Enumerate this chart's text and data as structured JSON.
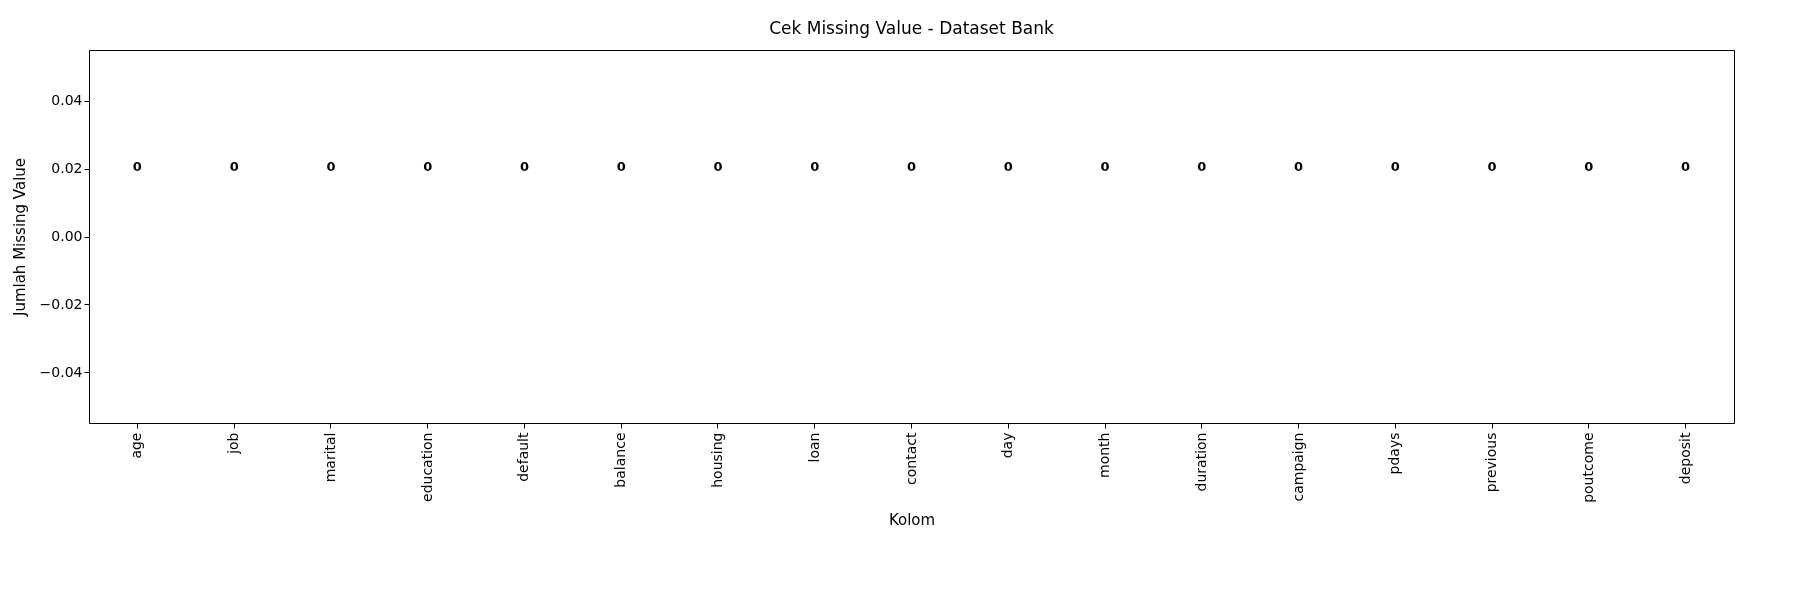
{
  "chart_data": {
    "type": "bar",
    "title": "Cek Missing Value - Dataset Bank",
    "xlabel": "Kolom",
    "ylabel": "Jumlah Missing Value",
    "categories": [
      "age",
      "job",
      "marital",
      "education",
      "default",
      "balance",
      "housing",
      "loan",
      "contact",
      "day",
      "month",
      "duration",
      "campaign",
      "pdays",
      "previous",
      "poutcome",
      "deposit"
    ],
    "values": [
      0,
      0,
      0,
      0,
      0,
      0,
      0,
      0,
      0,
      0,
      0,
      0,
      0,
      0,
      0,
      0,
      0
    ],
    "ylim": [
      -0.055,
      0.055
    ],
    "yticks": [
      {
        "value": -0.04,
        "label": "−0.04"
      },
      {
        "value": -0.02,
        "label": "−0.02"
      },
      {
        "value": 0,
        "label": "0.00"
      },
      {
        "value": 0.02,
        "label": "0.02"
      },
      {
        "value": 0.04,
        "label": "0.04"
      }
    ],
    "annotations": [
      "0",
      "0",
      "0",
      "0",
      "0",
      "0",
      "0",
      "0",
      "0",
      "0",
      "0",
      "0",
      "0",
      "0",
      "0",
      "0",
      "0"
    ],
    "grid": false
  }
}
